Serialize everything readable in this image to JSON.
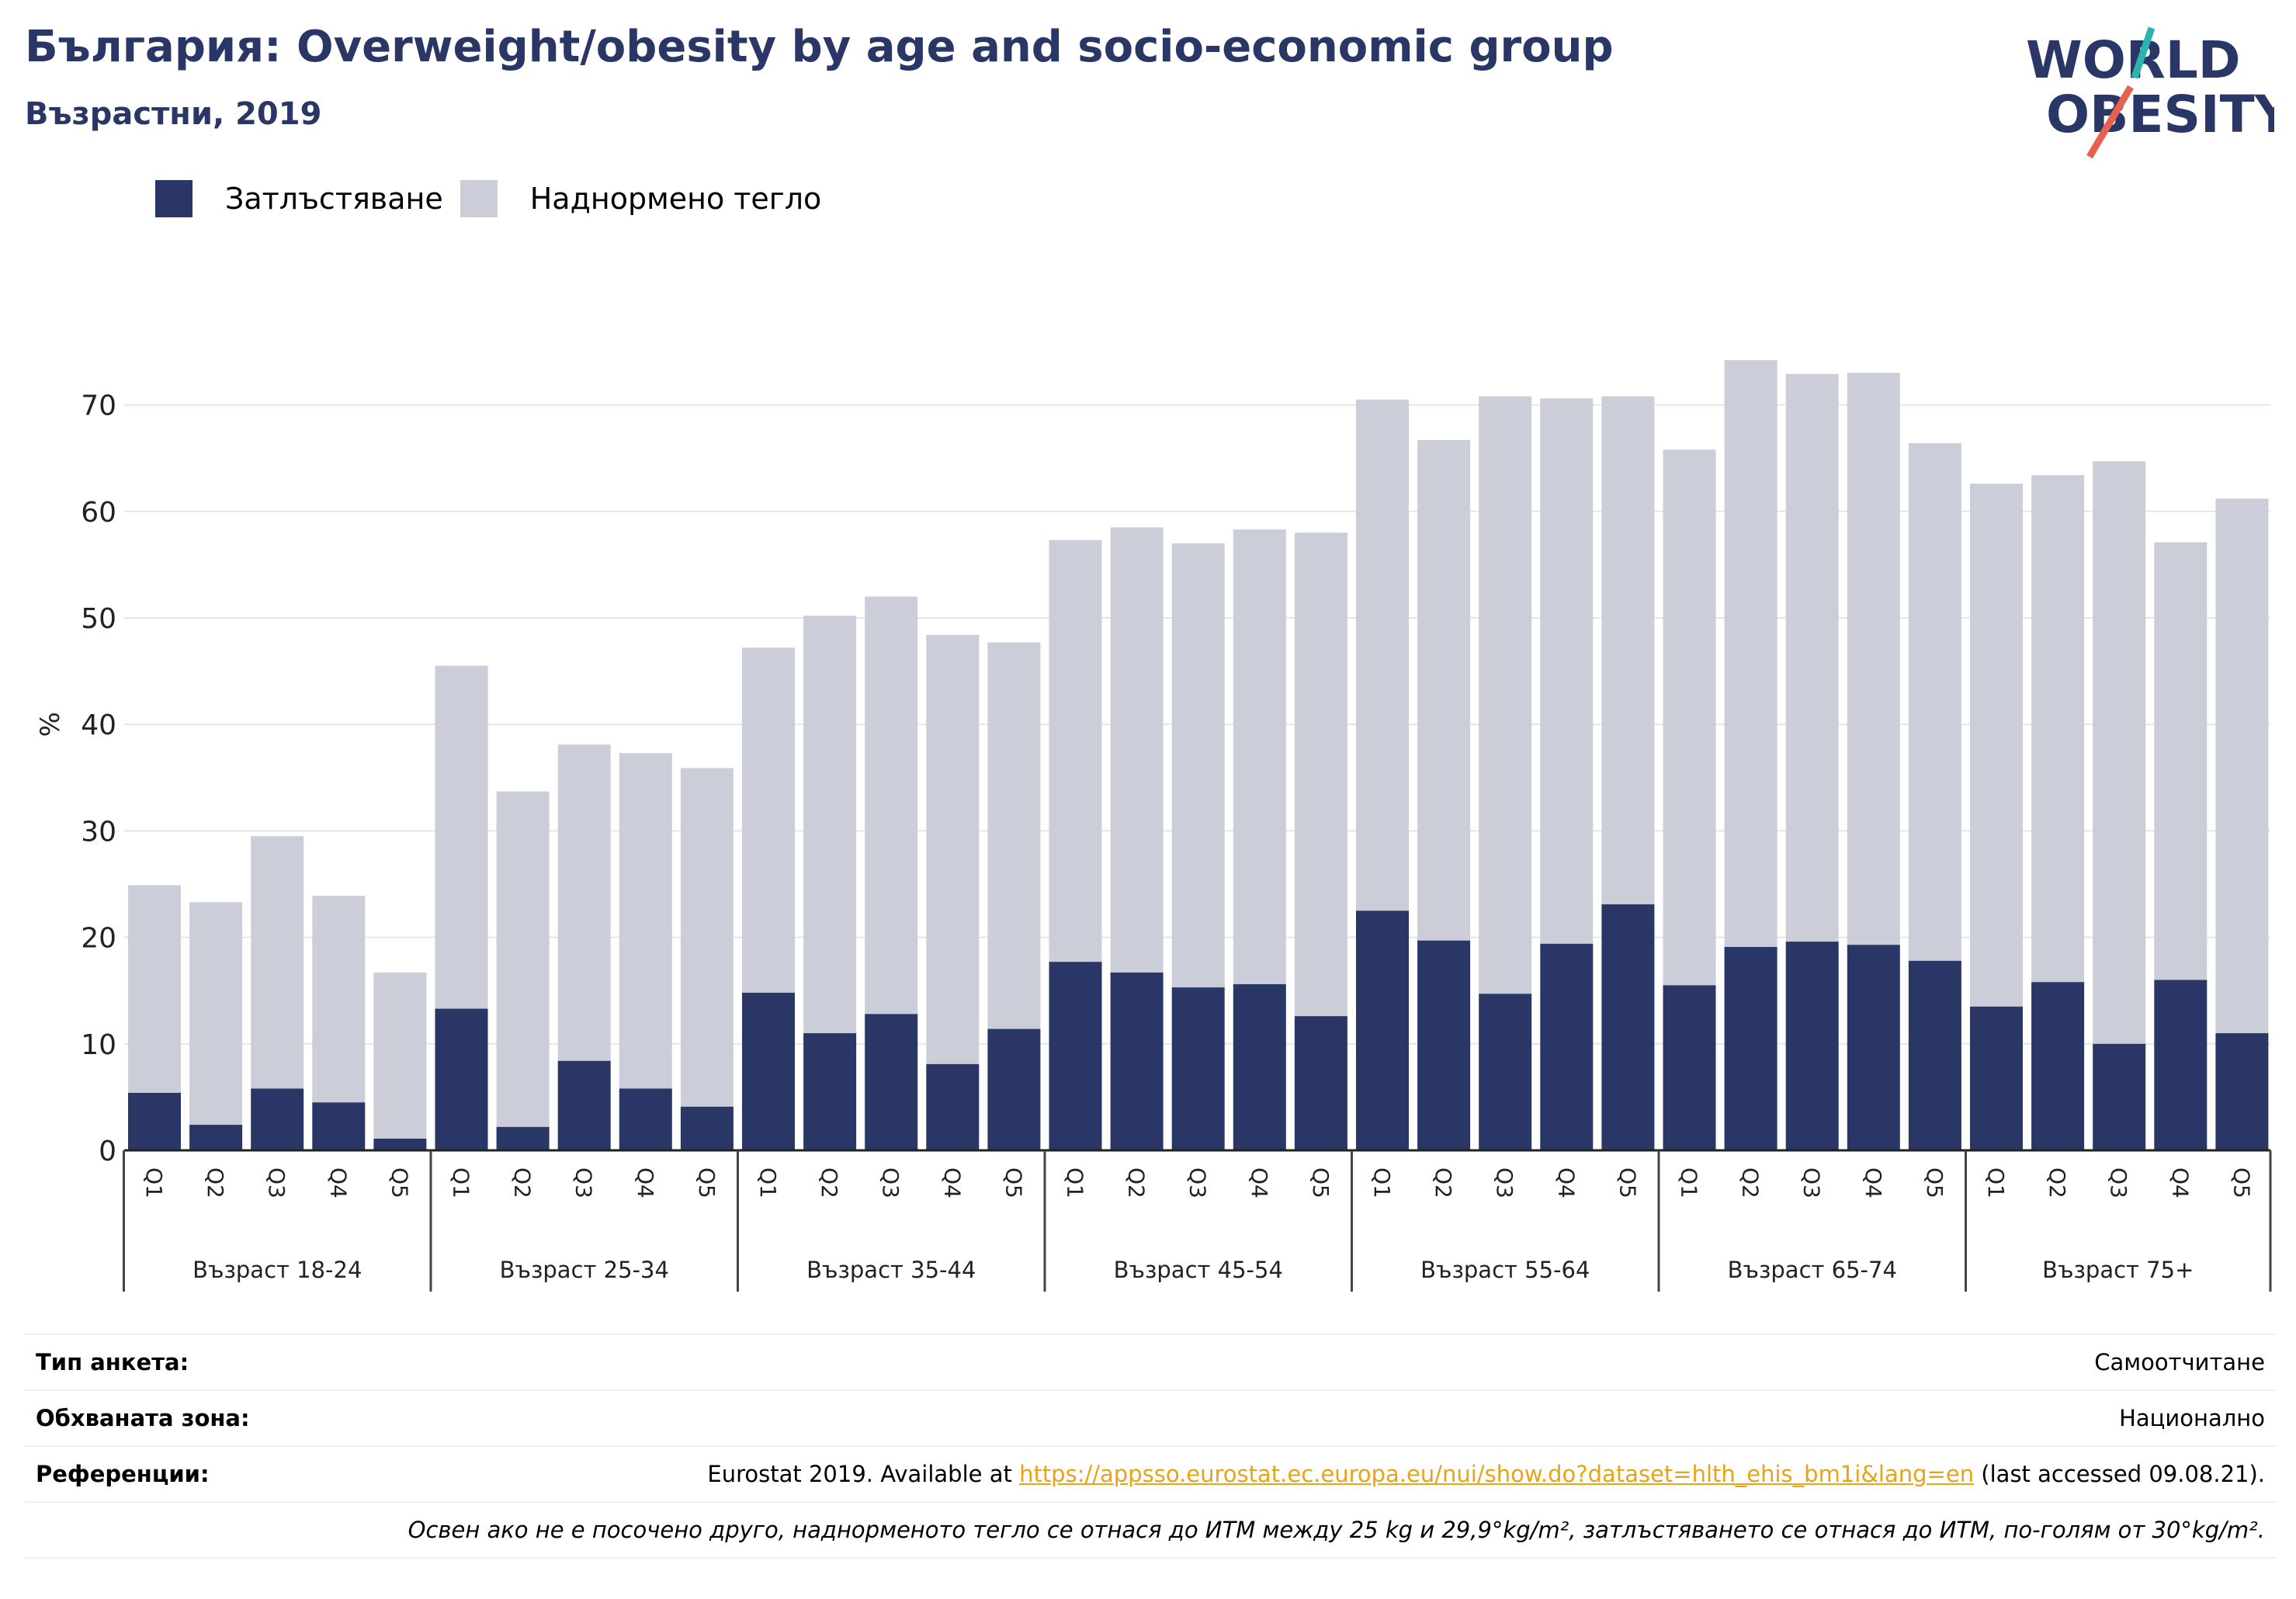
{
  "header": {
    "title": "България: Overweight/obesity by age and socio-economic group",
    "subtitle": "Възрастни, 2019"
  },
  "logo": {
    "line1": "WORLD",
    "line2": "OBESITY",
    "icon": "world-obesity-logo"
  },
  "legend": [
    {
      "label": "Затлъстяване",
      "color": "#2a3665"
    },
    {
      "label": "Наднормено тегло",
      "color": "#cbcdd8"
    }
  ],
  "chart_data": {
    "type": "bar",
    "stacked": true,
    "ylabel": "%",
    "ylim": [
      0,
      80
    ],
    "yticks": [
      0,
      10,
      20,
      30,
      40,
      50,
      60,
      70
    ],
    "grid": true,
    "legend_position": "top-left",
    "groups": [
      {
        "label": "Възраст 18-24",
        "categories": [
          "Q1",
          "Q2",
          "Q3",
          "Q4",
          "Q5"
        ],
        "obesity": [
          5.4,
          2.4,
          5.8,
          4.5,
          1.1
        ],
        "overweight_total": [
          24.9,
          23.3,
          29.5,
          23.9,
          16.7
        ]
      },
      {
        "label": "Възраст 25-34",
        "categories": [
          "Q1",
          "Q2",
          "Q3",
          "Q4",
          "Q5"
        ],
        "obesity": [
          13.3,
          2.2,
          8.4,
          5.8,
          4.1
        ],
        "overweight_total": [
          45.5,
          33.7,
          38.1,
          37.3,
          35.9
        ]
      },
      {
        "label": "Възраст 35-44",
        "categories": [
          "Q1",
          "Q2",
          "Q3",
          "Q4",
          "Q5"
        ],
        "obesity": [
          14.8,
          11.0,
          12.8,
          8.1,
          11.4
        ],
        "overweight_total": [
          47.2,
          50.2,
          52.0,
          48.4,
          47.7
        ]
      },
      {
        "label": "Възраст 45-54",
        "categories": [
          "Q1",
          "Q2",
          "Q3",
          "Q4",
          "Q5"
        ],
        "obesity": [
          17.7,
          16.7,
          15.3,
          15.6,
          12.6
        ],
        "overweight_total": [
          57.3,
          58.5,
          57.0,
          58.3,
          58.0
        ]
      },
      {
        "label": "Възраст 55-64",
        "categories": [
          "Q1",
          "Q2",
          "Q3",
          "Q4",
          "Q5"
        ],
        "obesity": [
          22.5,
          19.7,
          14.7,
          19.4,
          23.1
        ],
        "overweight_total": [
          70.5,
          66.7,
          70.8,
          70.6,
          70.8
        ]
      },
      {
        "label": "Възраст 65-74",
        "categories": [
          "Q1",
          "Q2",
          "Q3",
          "Q4",
          "Q5"
        ],
        "obesity": [
          15.5,
          19.1,
          19.6,
          19.3,
          17.8
        ],
        "overweight_total": [
          65.8,
          74.2,
          72.9,
          73.0,
          66.4
        ]
      },
      {
        "label": "Възраст 75+",
        "categories": [
          "Q1",
          "Q2",
          "Q3",
          "Q4",
          "Q5"
        ],
        "obesity": [
          13.5,
          15.8,
          10.0,
          16.0,
          11.0
        ],
        "overweight_total": [
          62.6,
          63.4,
          64.7,
          57.1,
          61.2
        ]
      }
    ]
  },
  "info": {
    "survey_type_label": "Тип анкета:",
    "survey_type_value": "Самоотчитане",
    "coverage_label": "Обхваната зона:",
    "coverage_value": "Национално",
    "references_label": "Референции:",
    "references_prefix": "Eurostat 2019. Available at ",
    "references_link": "https://appsso.eurostat.ec.europa.eu/nui/show.do?dataset=hlth_ehis_bm1i&lang=en",
    "references_suffix": " (last accessed 09.08.21).",
    "note": "Освен ако не е посочено друго, наднорменото тегло се отнася до ИТМ между 25 kg и 29,9°kg/m², затлъстяването се отнася до ИТМ, по-голям от 30°kg/m²."
  }
}
